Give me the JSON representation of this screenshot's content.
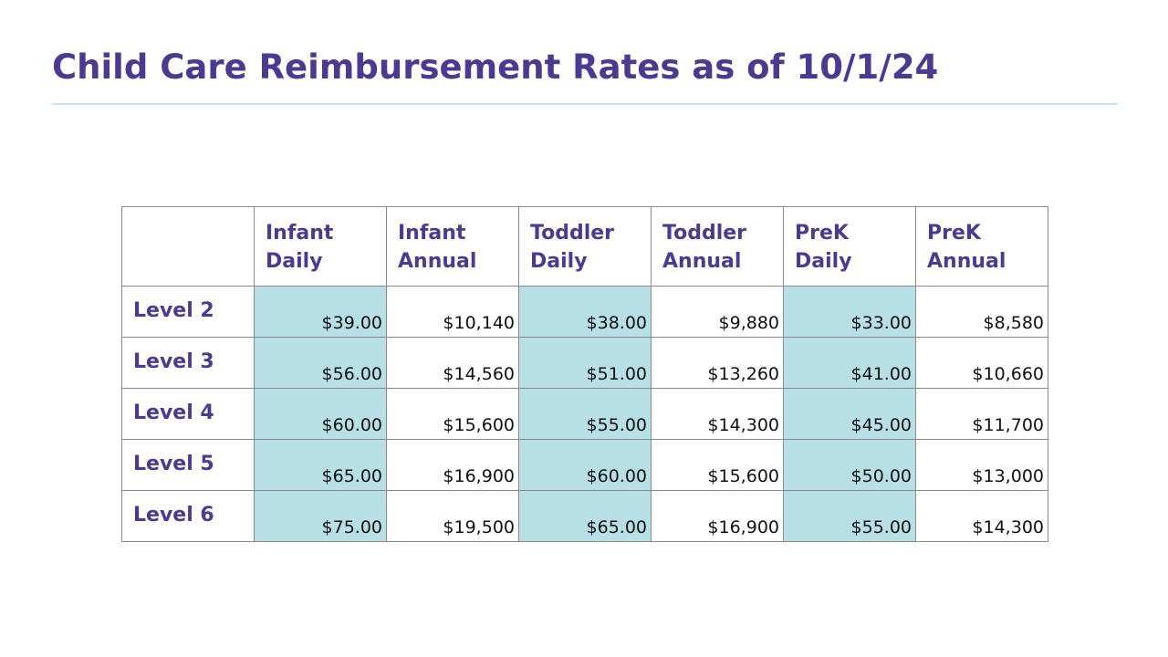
{
  "title": "Child Care Reimbursement Rates as of 10/1/24",
  "colors": {
    "title": "#4b3a8f",
    "rule": "#c6e3ea",
    "shaded_cell": "#b7dfe6",
    "border": "#8a8a8a"
  },
  "table": {
    "corner": "",
    "columns": [
      {
        "line1": "Infant",
        "line2": "Daily",
        "shaded": true
      },
      {
        "line1": "Infant",
        "line2": "Annual",
        "shaded": false
      },
      {
        "line1": "Toddler",
        "line2": "Daily",
        "shaded": true
      },
      {
        "line1": "Toddler",
        "line2": "Annual",
        "shaded": false
      },
      {
        "line1": "PreK",
        "line2": "Daily",
        "shaded": true
      },
      {
        "line1": "PreK",
        "line2": "Annual",
        "shaded": false
      }
    ],
    "rows": [
      {
        "label": "Level 2",
        "values": [
          "$39.00",
          "$10,140",
          "$38.00",
          "$9,880",
          "$33.00",
          "$8,580"
        ]
      },
      {
        "label": "Level 3",
        "values": [
          "$56.00",
          "$14,560",
          "$51.00",
          "$13,260",
          "$41.00",
          "$10,660"
        ]
      },
      {
        "label": "Level 4",
        "values": [
          "$60.00",
          "$15,600",
          "$55.00",
          "$14,300",
          "$45.00",
          "$11,700"
        ]
      },
      {
        "label": "Level 5",
        "values": [
          "$65.00",
          "$16,900",
          "$60.00",
          "$15,600",
          "$50.00",
          "$13,000"
        ]
      },
      {
        "label": "Level 6",
        "values": [
          "$75.00",
          "$19,500",
          "$65.00",
          "$16,900",
          "$55.00",
          "$14,300"
        ]
      }
    ]
  }
}
